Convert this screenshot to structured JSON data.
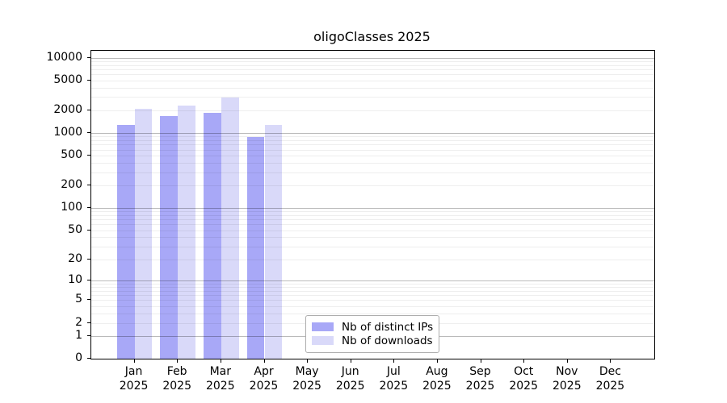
{
  "chart_data": {
    "type": "bar",
    "title": "oligoClasses 2025",
    "scale": "log1p",
    "grid": true,
    "legend_position": "bottom-center-inside",
    "year": "2025",
    "categories": [
      "Jan",
      "Feb",
      "Mar",
      "Apr",
      "May",
      "Jun",
      "Jul",
      "Aug",
      "Sep",
      "Oct",
      "Nov",
      "Dec"
    ],
    "series": [
      {
        "name": "Nb of distinct IPs",
        "color": "#a8a8f7",
        "values": [
          1275,
          1690,
          1850,
          880,
          null,
          null,
          null,
          null,
          null,
          null,
          null,
          null
        ]
      },
      {
        "name": "Nb of downloads",
        "color": "#d9d9f9",
        "values": [
          2090,
          2310,
          2950,
          1275,
          null,
          null,
          null,
          null,
          null,
          null,
          null,
          null
        ]
      }
    ],
    "y_ticks": [
      0,
      1,
      2,
      5,
      10,
      20,
      50,
      100,
      200,
      500,
      1000,
      2000,
      5000,
      10000
    ],
    "ylim": [
      0,
      12000
    ],
    "colors": {
      "grid_minor": "#ededed",
      "grid_major": "#bababa",
      "axis": "#000000"
    }
  }
}
